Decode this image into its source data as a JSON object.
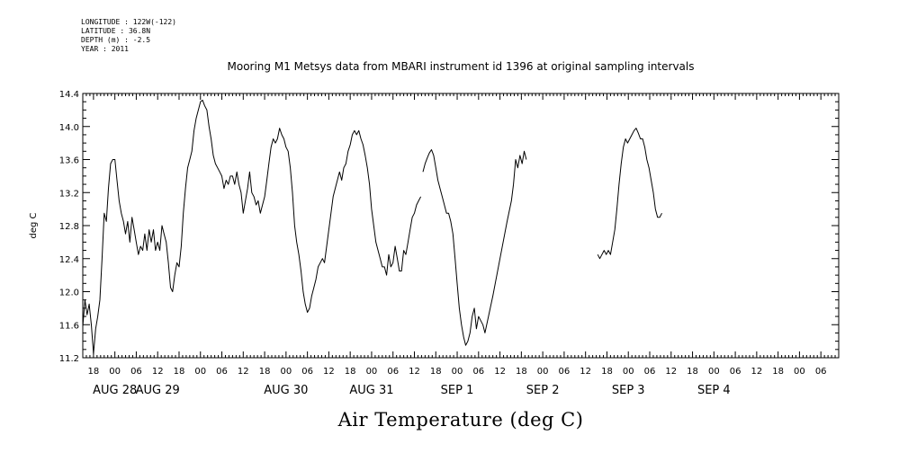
{
  "header": {
    "longitude": "LONGITUDE : 122W(-122)",
    "latitude": "LATITUDE : 36.8N",
    "depth": "DEPTH (m) : -2.5",
    "year": "YEAR : 2011"
  },
  "chart_data": {
    "type": "line",
    "title": "Mooring M1 Metsys data from MBARI instrument id 1396 at original sampling intervals",
    "xlabel": "Air Temperature (deg C)",
    "ylabel": "deg C",
    "x_units": "hours since 2011-08-28 00:00",
    "xlim": [
      15,
      227
    ],
    "ylim": [
      11.2,
      14.4
    ],
    "y_ticks": [
      "11.2",
      "11.6",
      "12.0",
      "12.4",
      "12.8",
      "13.2",
      "13.6",
      "14.0",
      "14.4"
    ],
    "x_hour_ticks": [
      {
        "x": 18,
        "label": "18"
      },
      {
        "x": 24,
        "label": "00"
      },
      {
        "x": 30,
        "label": "06"
      },
      {
        "x": 36,
        "label": "12"
      },
      {
        "x": 42,
        "label": "18"
      },
      {
        "x": 48,
        "label": "00"
      },
      {
        "x": 54,
        "label": "06"
      },
      {
        "x": 60,
        "label": "12"
      },
      {
        "x": 66,
        "label": "18"
      },
      {
        "x": 72,
        "label": "00"
      },
      {
        "x": 78,
        "label": "06"
      },
      {
        "x": 84,
        "label": "12"
      },
      {
        "x": 90,
        "label": "18"
      },
      {
        "x": 96,
        "label": "00"
      },
      {
        "x": 102,
        "label": "06"
      },
      {
        "x": 108,
        "label": "12"
      },
      {
        "x": 114,
        "label": "18"
      },
      {
        "x": 120,
        "label": "00"
      },
      {
        "x": 126,
        "label": "06"
      },
      {
        "x": 132,
        "label": "12"
      },
      {
        "x": 138,
        "label": "18"
      },
      {
        "x": 144,
        "label": "00"
      },
      {
        "x": 150,
        "label": "06"
      },
      {
        "x": 156,
        "label": "12"
      },
      {
        "x": 162,
        "label": "18"
      },
      {
        "x": 168,
        "label": "00"
      },
      {
        "x": 174,
        "label": "06"
      },
      {
        "x": 180,
        "label": "12"
      },
      {
        "x": 186,
        "label": "18"
      },
      {
        "x": 192,
        "label": "00"
      },
      {
        "x": 198,
        "label": "06"
      },
      {
        "x": 204,
        "label": "12"
      },
      {
        "x": 210,
        "label": "18"
      },
      {
        "x": 216,
        "label": "00"
      },
      {
        "x": 222,
        "label": "06"
      }
    ],
    "x_date_labels": [
      {
        "x": 24,
        "label": "AUG 28"
      },
      {
        "x": 36,
        "label": "AUG 29"
      },
      {
        "x": 72,
        "label": "AUG 30"
      },
      {
        "x": 96,
        "label": "AUG 31"
      },
      {
        "x": 120,
        "label": "SEP  1"
      },
      {
        "x": 144,
        "label": "SEP  2"
      },
      {
        "x": 168,
        "label": "SEP  3"
      },
      {
        "x": 192,
        "label": "SEP  4"
      }
    ],
    "series": [
      {
        "color": "#000000",
        "segments": [
          [
            [
              15,
              11.58
            ],
            [
              15.6,
              11.9
            ],
            [
              16.2,
              11.72
            ],
            [
              16.8,
              11.85
            ],
            [
              17.4,
              11.6
            ],
            [
              18,
              11.25
            ],
            [
              18.6,
              11.55
            ],
            [
              19.2,
              11.7
            ],
            [
              19.8,
              11.9
            ],
            [
              20.4,
              12.4
            ],
            [
              21,
              12.95
            ],
            [
              21.6,
              12.85
            ],
            [
              22.2,
              13.25
            ],
            [
              22.8,
              13.55
            ],
            [
              23.4,
              13.6
            ],
            [
              24,
              13.6
            ],
            [
              24.6,
              13.35
            ],
            [
              25.2,
              13.1
            ],
            [
              25.8,
              12.95
            ],
            [
              26.4,
              12.85
            ],
            [
              27,
              12.7
            ],
            [
              27.6,
              12.85
            ],
            [
              28.2,
              12.6
            ],
            [
              28.8,
              12.9
            ],
            [
              29.4,
              12.75
            ],
            [
              30,
              12.6
            ],
            [
              30.6,
              12.45
            ],
            [
              31.2,
              12.55
            ],
            [
              31.8,
              12.5
            ],
            [
              32.4,
              12.7
            ],
            [
              33,
              12.5
            ],
            [
              33.6,
              12.75
            ],
            [
              34.2,
              12.6
            ],
            [
              34.8,
              12.75
            ],
            [
              35.4,
              12.5
            ],
            [
              36,
              12.6
            ],
            [
              36.6,
              12.5
            ],
            [
              37.2,
              12.8
            ],
            [
              37.8,
              12.7
            ],
            [
              38.4,
              12.6
            ],
            [
              39,
              12.35
            ],
            [
              39.6,
              12.05
            ],
            [
              40.2,
              12.0
            ],
            [
              40.8,
              12.2
            ],
            [
              41.4,
              12.35
            ],
            [
              42,
              12.3
            ],
            [
              42.6,
              12.55
            ],
            [
              43.2,
              12.95
            ],
            [
              43.8,
              13.25
            ],
            [
              44.4,
              13.5
            ],
            [
              45,
              13.6
            ],
            [
              45.6,
              13.7
            ],
            [
              46.2,
              13.95
            ],
            [
              46.8,
              14.1
            ],
            [
              47.4,
              14.2
            ],
            [
              48,
              14.3
            ],
            [
              48.6,
              14.32
            ],
            [
              49.2,
              14.25
            ],
            [
              49.8,
              14.2
            ],
            [
              50.4,
              14.0
            ],
            [
              51,
              13.85
            ],
            [
              51.6,
              13.65
            ],
            [
              52.2,
              13.55
            ],
            [
              52.8,
              13.5
            ],
            [
              53.4,
              13.45
            ],
            [
              54,
              13.4
            ],
            [
              54.6,
              13.25
            ],
            [
              55.2,
              13.35
            ],
            [
              55.8,
              13.3
            ],
            [
              56.4,
              13.4
            ],
            [
              57,
              13.4
            ],
            [
              57.6,
              13.3
            ],
            [
              58.2,
              13.45
            ],
            [
              58.8,
              13.3
            ],
            [
              59.4,
              13.2
            ],
            [
              60,
              12.95
            ],
            [
              60.6,
              13.1
            ],
            [
              61.2,
              13.25
            ],
            [
              61.8,
              13.45
            ],
            [
              62.4,
              13.2
            ],
            [
              63,
              13.15
            ],
            [
              63.6,
              13.05
            ],
            [
              64.2,
              13.1
            ],
            [
              64.8,
              12.95
            ],
            [
              65.4,
              13.05
            ],
            [
              66,
              13.15
            ],
            [
              66.6,
              13.35
            ],
            [
              67.2,
              13.55
            ],
            [
              67.8,
              13.75
            ],
            [
              68.4,
              13.85
            ],
            [
              69,
              13.8
            ],
            [
              69.6,
              13.85
            ],
            [
              70.2,
              13.98
            ],
            [
              70.8,
              13.9
            ],
            [
              71.4,
              13.85
            ],
            [
              72,
              13.75
            ],
            [
              72.6,
              13.7
            ],
            [
              73.2,
              13.5
            ],
            [
              73.8,
              13.2
            ],
            [
              74.4,
              12.8
            ],
            [
              75,
              12.6
            ],
            [
              75.6,
              12.45
            ],
            [
              76.2,
              12.25
            ],
            [
              76.8,
              12.0
            ],
            [
              77.4,
              11.85
            ],
            [
              78,
              11.75
            ],
            [
              78.6,
              11.8
            ],
            [
              79.2,
              11.95
            ],
            [
              79.8,
              12.05
            ],
            [
              80.4,
              12.15
            ],
            [
              81,
              12.3
            ],
            [
              81.6,
              12.35
            ],
            [
              82.2,
              12.4
            ],
            [
              82.8,
              12.35
            ],
            [
              83.4,
              12.55
            ],
            [
              84,
              12.75
            ],
            [
              84.6,
              12.95
            ],
            [
              85.2,
              13.15
            ],
            [
              85.8,
              13.25
            ],
            [
              86.4,
              13.35
            ],
            [
              87,
              13.45
            ],
            [
              87.6,
              13.35
            ],
            [
              88.2,
              13.5
            ],
            [
              88.8,
              13.55
            ],
            [
              89.4,
              13.7
            ],
            [
              90,
              13.78
            ],
            [
              90.6,
              13.9
            ],
            [
              91.2,
              13.95
            ],
            [
              91.8,
              13.9
            ],
            [
              92.4,
              13.95
            ],
            [
              93,
              13.85
            ],
            [
              93.6,
              13.78
            ],
            [
              94.2,
              13.65
            ],
            [
              94.8,
              13.5
            ],
            [
              95.4,
              13.3
            ],
            [
              96,
              13.0
            ],
            [
              96.6,
              12.8
            ],
            [
              97.2,
              12.6
            ],
            [
              97.8,
              12.5
            ],
            [
              98.4,
              12.4
            ],
            [
              99,
              12.3
            ],
            [
              99.6,
              12.3
            ],
            [
              100.2,
              12.2
            ],
            [
              100.8,
              12.45
            ],
            [
              101.4,
              12.3
            ],
            [
              102,
              12.35
            ],
            [
              102.6,
              12.55
            ],
            [
              103.2,
              12.4
            ],
            [
              103.8,
              12.25
            ],
            [
              104.4,
              12.25
            ],
            [
              105,
              12.5
            ],
            [
              105.6,
              12.45
            ],
            [
              106.2,
              12.6
            ],
            [
              106.8,
              12.75
            ],
            [
              107.4,
              12.9
            ],
            [
              108,
              12.95
            ],
            [
              108.6,
              13.05
            ],
            [
              109.2,
              13.1
            ],
            [
              109.8,
              13.15
            ]
          ],
          [
            [
              110.4,
              13.45
            ],
            [
              111,
              13.55
            ],
            [
              111.6,
              13.62
            ],
            [
              112.2,
              13.68
            ],
            [
              112.8,
              13.72
            ],
            [
              113.4,
              13.65
            ],
            [
              114,
              13.5
            ],
            [
              114.6,
              13.35
            ],
            [
              115.2,
              13.25
            ],
            [
              115.8,
              13.15
            ],
            [
              116.4,
              13.05
            ],
            [
              117,
              12.95
            ],
            [
              117.6,
              12.95
            ],
            [
              118.2,
              12.85
            ],
            [
              118.8,
              12.7
            ],
            [
              119.4,
              12.4
            ],
            [
              120,
              12.1
            ],
            [
              120.6,
              11.8
            ],
            [
              121.2,
              11.6
            ],
            [
              121.8,
              11.45
            ],
            [
              122.4,
              11.35
            ],
            [
              123,
              11.4
            ],
            [
              123.6,
              11.5
            ],
            [
              124.2,
              11.7
            ],
            [
              124.8,
              11.8
            ],
            [
              125.4,
              11.55
            ],
            [
              126,
              11.7
            ],
            [
              126.6,
              11.65
            ],
            [
              127.2,
              11.6
            ],
            [
              127.8,
              11.5
            ],
            [
              130,
              11.95
            ],
            [
              132,
              12.4
            ],
            [
              134,
              12.85
            ],
            [
              135.2,
              13.1
            ],
            [
              135.8,
              13.3
            ],
            [
              136.4,
              13.6
            ],
            [
              137,
              13.5
            ],
            [
              137.6,
              13.65
            ],
            [
              138.2,
              13.55
            ],
            [
              138.8,
              13.7
            ],
            [
              139.4,
              13.6
            ]
          ],
          [
            [
              159.4,
              12.45
            ],
            [
              160,
              12.4
            ],
            [
              160.6,
              12.45
            ],
            [
              161.2,
              12.5
            ],
            [
              161.8,
              12.45
            ],
            [
              162.4,
              12.5
            ],
            [
              163,
              12.45
            ],
            [
              163.6,
              12.6
            ],
            [
              164.2,
              12.75
            ],
            [
              164.8,
              13.0
            ],
            [
              165.4,
              13.3
            ],
            [
              166,
              13.55
            ],
            [
              166.6,
              13.75
            ],
            [
              167.2,
              13.85
            ],
            [
              167.8,
              13.8
            ],
            [
              168.4,
              13.85
            ],
            [
              169,
              13.9
            ],
            [
              169.6,
              13.95
            ],
            [
              170.2,
              13.98
            ],
            [
              170.8,
              13.92
            ],
            [
              171.4,
              13.85
            ],
            [
              172,
              13.85
            ],
            [
              172.6,
              13.75
            ],
            [
              173.2,
              13.6
            ],
            [
              173.8,
              13.5
            ],
            [
              174.4,
              13.35
            ],
            [
              175,
              13.2
            ],
            [
              175.6,
              13.0
            ],
            [
              176.2,
              12.9
            ],
            [
              176.8,
              12.9
            ],
            [
              177.4,
              12.95
            ]
          ]
        ]
      }
    ]
  }
}
